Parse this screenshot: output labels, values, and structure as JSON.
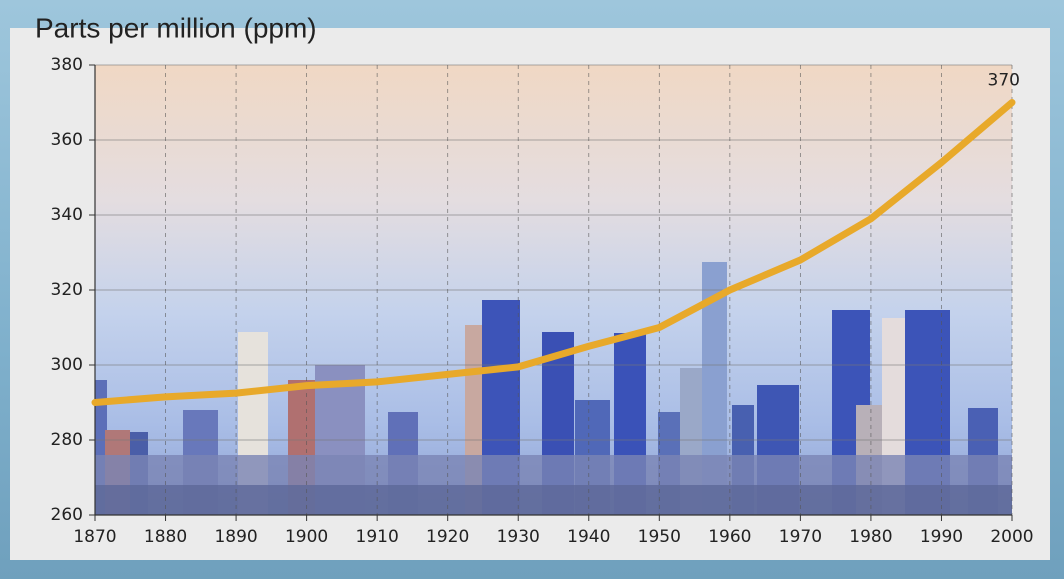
{
  "chart_data": {
    "type": "line",
    "title": "Parts per million (ppm)",
    "x": [
      1870,
      1880,
      1890,
      1900,
      1910,
      1920,
      1930,
      1940,
      1950,
      1960,
      1970,
      1980,
      1990,
      2000
    ],
    "series": [
      {
        "color": "#e8a92a",
        "values": [
          290,
          291.5,
          292.5,
          294.5,
          295.5,
          297.5,
          299.5,
          305,
          310,
          320,
          328,
          339,
          354,
          370
        ],
        "value_labels": [
          null,
          null,
          null,
          null,
          null,
          null,
          null,
          null,
          null,
          null,
          null,
          null,
          null,
          "370"
        ]
      }
    ],
    "xlim": [
      1870,
      2000
    ],
    "xticks": [
      1870,
      1880,
      1890,
      1900,
      1910,
      1920,
      1930,
      1940,
      1950,
      1960,
      1970,
      1980,
      1990,
      2000
    ],
    "ylim": [
      260,
      380
    ],
    "yticks": [
      260,
      280,
      300,
      320,
      340,
      360,
      380
    ],
    "grid": true
  }
}
